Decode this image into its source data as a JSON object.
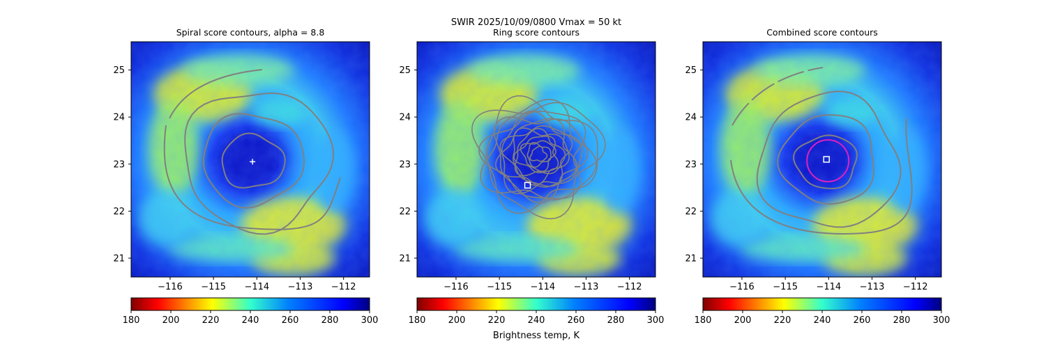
{
  "figure": {
    "suptitle_line1": "SWIR  2025/10/09/0800    Vmax = 50 kt",
    "colorbar_label": "Brightness temp, K"
  },
  "chart_data": [
    {
      "type": "heatmap",
      "title": "Spiral score contours, alpha =  8.8",
      "xlim": [
        -116.9,
        -111.4
      ],
      "ylim": [
        20.6,
        25.6
      ],
      "xticks": [
        -116,
        -115,
        -114,
        -113,
        -112
      ],
      "yticks": [
        21,
        22,
        23,
        24,
        25
      ],
      "center_marker": {
        "shape": "plus",
        "lon": -114.1,
        "lat": 23.05,
        "color": "#ffffff"
      },
      "colorbar": {
        "min": 180,
        "max": 300,
        "ticks": [
          180,
          200,
          220,
          240,
          260,
          280,
          300
        ],
        "cmap": "jet_r"
      },
      "contour_color": "#808080"
    },
    {
      "type": "heatmap",
      "title": "Ring score contours",
      "xlim": [
        -116.9,
        -111.4
      ],
      "ylim": [
        20.6,
        25.6
      ],
      "xticks": [
        -116,
        -115,
        -114,
        -113,
        -112
      ],
      "yticks": [
        21,
        22,
        23,
        24,
        25
      ],
      "center_marker": {
        "shape": "square",
        "lon": -114.35,
        "lat": 22.55,
        "color": "#ffffff"
      },
      "colorbar": {
        "min": 180,
        "max": 300,
        "ticks": [
          180,
          200,
          220,
          240,
          260,
          280,
          300
        ],
        "cmap": "jet_r"
      },
      "contour_color": "#808080"
    },
    {
      "type": "heatmap",
      "title": "Combined score contours",
      "xlim": [
        -116.9,
        -111.4
      ],
      "ylim": [
        20.6,
        25.6
      ],
      "xticks": [
        -116,
        -115,
        -114,
        -113,
        -112
      ],
      "yticks": [
        21,
        22,
        23,
        24,
        25
      ],
      "center_marker": {
        "shape": "square",
        "lon": -114.05,
        "lat": 23.1,
        "color": "#ffffff"
      },
      "ring_color": "#e020c0",
      "colorbar": {
        "min": 180,
        "max": 300,
        "ticks": [
          180,
          200,
          220,
          240,
          260,
          280,
          300
        ],
        "cmap": "jet_r"
      },
      "contour_color": "#808080"
    }
  ]
}
